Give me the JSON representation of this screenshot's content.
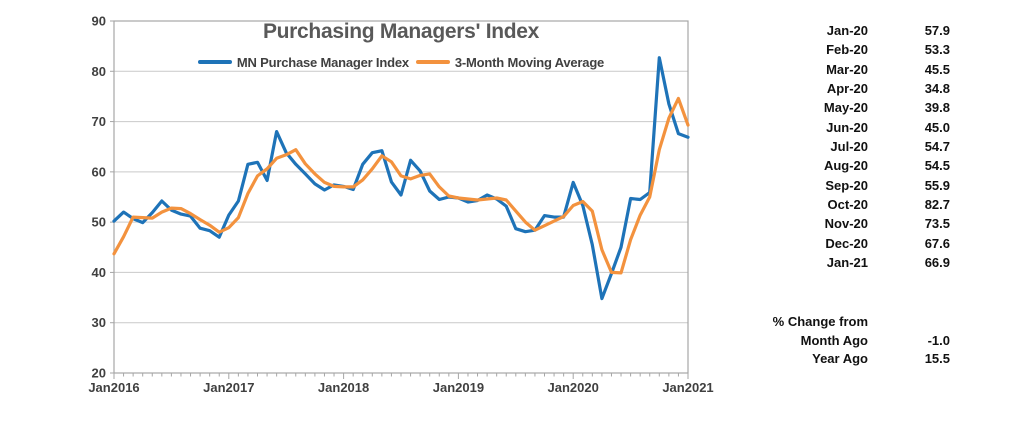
{
  "colors": {
    "pmi_line": "#1E73B8",
    "ma_line": "#F3923E",
    "title_text": "#595959",
    "legend_text": "#404040",
    "axis_text": "#404040",
    "gridline": "#C9C9C9",
    "axis_line": "#A6A6A6",
    "table_text": "#111111"
  },
  "chart_data": {
    "type": "line",
    "title": "Purchasing Managers' Index",
    "xlabel": "",
    "ylabel": "",
    "ylim": [
      20,
      90
    ],
    "y_ticks": [
      20,
      30,
      40,
      50,
      60,
      70,
      80,
      90
    ],
    "grid": true,
    "legend_position": "top-center",
    "x_tick_labels": [
      "Jan2016",
      "Jan2017",
      "Jan2018",
      "Jan2019",
      "Jan2020",
      "Jan2021"
    ],
    "x": [
      "Jan-16",
      "Feb-16",
      "Mar-16",
      "Apr-16",
      "May-16",
      "Jun-16",
      "Jul-16",
      "Aug-16",
      "Sep-16",
      "Oct-16",
      "Nov-16",
      "Dec-16",
      "Jan-17",
      "Feb-17",
      "Mar-17",
      "Apr-17",
      "May-17",
      "Jun-17",
      "Jul-17",
      "Aug-17",
      "Sep-17",
      "Oct-17",
      "Nov-17",
      "Dec-17",
      "Jan-18",
      "Feb-18",
      "Mar-18",
      "Apr-18",
      "May-18",
      "Jun-18",
      "Jul-18",
      "Aug-18",
      "Sep-18",
      "Oct-18",
      "Nov-18",
      "Dec-18",
      "Jan-19",
      "Feb-19",
      "Mar-19",
      "Apr-19",
      "May-19",
      "Jun-19",
      "Jul-19",
      "Aug-19",
      "Sep-19",
      "Oct-19",
      "Nov-19",
      "Dec-19",
      "Jan-20",
      "Feb-20",
      "Mar-20",
      "Apr-20",
      "May-20",
      "Jun-20",
      "Jul-20",
      "Aug-20",
      "Sep-20",
      "Oct-20",
      "Nov-20",
      "Dec-20",
      "Jan-21"
    ],
    "series": [
      {
        "name": "MN Purchase Manager Index",
        "color": "#1E73B8",
        "values": [
          50.2,
          52.0,
          50.7,
          49.9,
          51.9,
          54.2,
          52.4,
          51.6,
          51.2,
          48.8,
          48.3,
          47.0,
          51.4,
          54.2,
          61.5,
          61.9,
          58.3,
          68.0,
          63.8,
          61.5,
          59.6,
          57.6,
          56.4,
          57.4,
          57.1,
          56.5,
          61.5,
          63.8,
          64.2,
          58.0,
          55.4,
          62.3,
          60.2,
          56.2,
          54.5,
          55.0,
          54.8,
          54.0,
          54.3,
          55.4,
          54.6,
          53.2,
          48.7,
          48.1,
          48.4,
          51.3,
          51.0,
          51.0,
          57.9,
          53.3,
          45.5,
          34.8,
          39.8,
          45.0,
          54.7,
          54.5,
          55.9,
          82.7,
          73.5,
          67.6,
          66.9
        ]
      },
      {
        "name": "3-Month Moving Average",
        "color": "#F3923E",
        "values": [
          43.7,
          47.1,
          51.0,
          50.9,
          50.8,
          52.0,
          52.8,
          52.7,
          51.7,
          50.5,
          49.4,
          48.0,
          48.9,
          50.9,
          55.7,
          59.2,
          60.6,
          62.7,
          63.4,
          64.4,
          61.6,
          59.6,
          57.9,
          57.1,
          57.0,
          57.0,
          58.4,
          60.6,
          63.2,
          62.0,
          59.2,
          58.6,
          59.3,
          59.6,
          57.0,
          55.2,
          54.8,
          54.6,
          54.4,
          54.6,
          54.8,
          54.4,
          52.2,
          50.0,
          48.4,
          49.3,
          50.2,
          51.1,
          53.3,
          54.1,
          52.2,
          44.5,
          40.0,
          39.9,
          46.5,
          51.4,
          55.0,
          64.4,
          70.7,
          74.6,
          69.3
        ]
      }
    ]
  },
  "side_table": {
    "rows": [
      {
        "label": "Jan-20",
        "value": "57.9"
      },
      {
        "label": "Feb-20",
        "value": "53.3"
      },
      {
        "label": "Mar-20",
        "value": "45.5"
      },
      {
        "label": "Apr-20",
        "value": "34.8"
      },
      {
        "label": "May-20",
        "value": "39.8"
      },
      {
        "label": "Jun-20",
        "value": "45.0"
      },
      {
        "label": "Jul-20",
        "value": "54.7"
      },
      {
        "label": "Aug-20",
        "value": "54.5"
      },
      {
        "label": "Sep-20",
        "value": "55.9"
      },
      {
        "label": "Oct-20",
        "value": "82.7"
      },
      {
        "label": "Nov-20",
        "value": "73.5"
      },
      {
        "label": "Dec-20",
        "value": "67.6"
      },
      {
        "label": "Jan-21",
        "value": "66.9"
      }
    ],
    "pct_change": {
      "header": "% Change from",
      "rows": [
        {
          "label": "Month Ago",
          "value": "-1.0"
        },
        {
          "label": "Year Ago",
          "value": "15.5"
        }
      ]
    }
  }
}
